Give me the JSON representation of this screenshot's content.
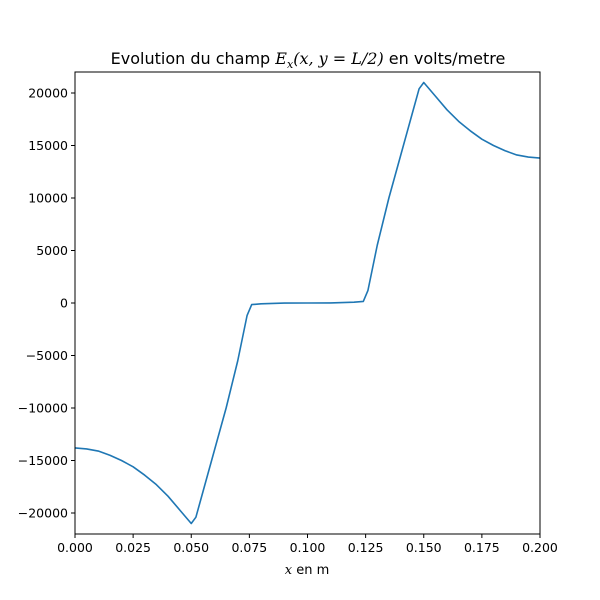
{
  "chart_data": {
    "type": "line",
    "title": "Evolution du champ Ex(x, y = L/2) en volts/metre",
    "title_parts": {
      "prefix": "Evolution du champ ",
      "symbol": "E",
      "subscript": "x",
      "args": "(x, y = L/2)",
      "suffix": " en volts/metre"
    },
    "xlabel": "x en m",
    "xlabel_parts": {
      "variable": "x",
      "rest": " en m"
    },
    "ylabel": "",
    "xlim": [
      0.0,
      0.2
    ],
    "ylim": [
      -22000,
      22000
    ],
    "x_ticks": [
      0.0,
      0.025,
      0.05,
      0.075,
      0.1,
      0.125,
      0.15,
      0.175,
      0.2
    ],
    "x_tick_labels": [
      "0.000",
      "0.025",
      "0.050",
      "0.075",
      "0.100",
      "0.125",
      "0.150",
      "0.175",
      "0.200"
    ],
    "y_ticks": [
      -20000,
      -15000,
      -10000,
      -5000,
      0,
      5000,
      10000,
      15000,
      20000
    ],
    "y_tick_labels": [
      "−20000",
      "−15000",
      "−10000",
      "−5000",
      "0",
      "5000",
      "10000",
      "15000",
      "20000"
    ],
    "grid": false,
    "series": [
      {
        "color": "#1f77b4",
        "points": [
          [
            0.0,
            -13800
          ],
          [
            0.005,
            -13900
          ],
          [
            0.01,
            -14100
          ],
          [
            0.015,
            -14500
          ],
          [
            0.02,
            -15000
          ],
          [
            0.025,
            -15600
          ],
          [
            0.03,
            -16400
          ],
          [
            0.035,
            -17300
          ],
          [
            0.04,
            -18400
          ],
          [
            0.045,
            -19700
          ],
          [
            0.05,
            -21000
          ],
          [
            0.052,
            -20400
          ],
          [
            0.055,
            -18000
          ],
          [
            0.06,
            -14000
          ],
          [
            0.065,
            -10000
          ],
          [
            0.07,
            -5500
          ],
          [
            0.074,
            -1200
          ],
          [
            0.076,
            -150
          ],
          [
            0.08,
            -80
          ],
          [
            0.085,
            -40
          ],
          [
            0.09,
            -10
          ],
          [
            0.1,
            0
          ],
          [
            0.11,
            10
          ],
          [
            0.115,
            40
          ],
          [
            0.12,
            80
          ],
          [
            0.124,
            150
          ],
          [
            0.126,
            1200
          ],
          [
            0.13,
            5500
          ],
          [
            0.135,
            10000
          ],
          [
            0.14,
            14000
          ],
          [
            0.145,
            18000
          ],
          [
            0.148,
            20400
          ],
          [
            0.15,
            21000
          ],
          [
            0.155,
            19700
          ],
          [
            0.16,
            18400
          ],
          [
            0.165,
            17300
          ],
          [
            0.17,
            16400
          ],
          [
            0.175,
            15600
          ],
          [
            0.18,
            15000
          ],
          [
            0.185,
            14500
          ],
          [
            0.19,
            14100
          ],
          [
            0.195,
            13900
          ],
          [
            0.2,
            13800
          ]
        ]
      }
    ]
  }
}
